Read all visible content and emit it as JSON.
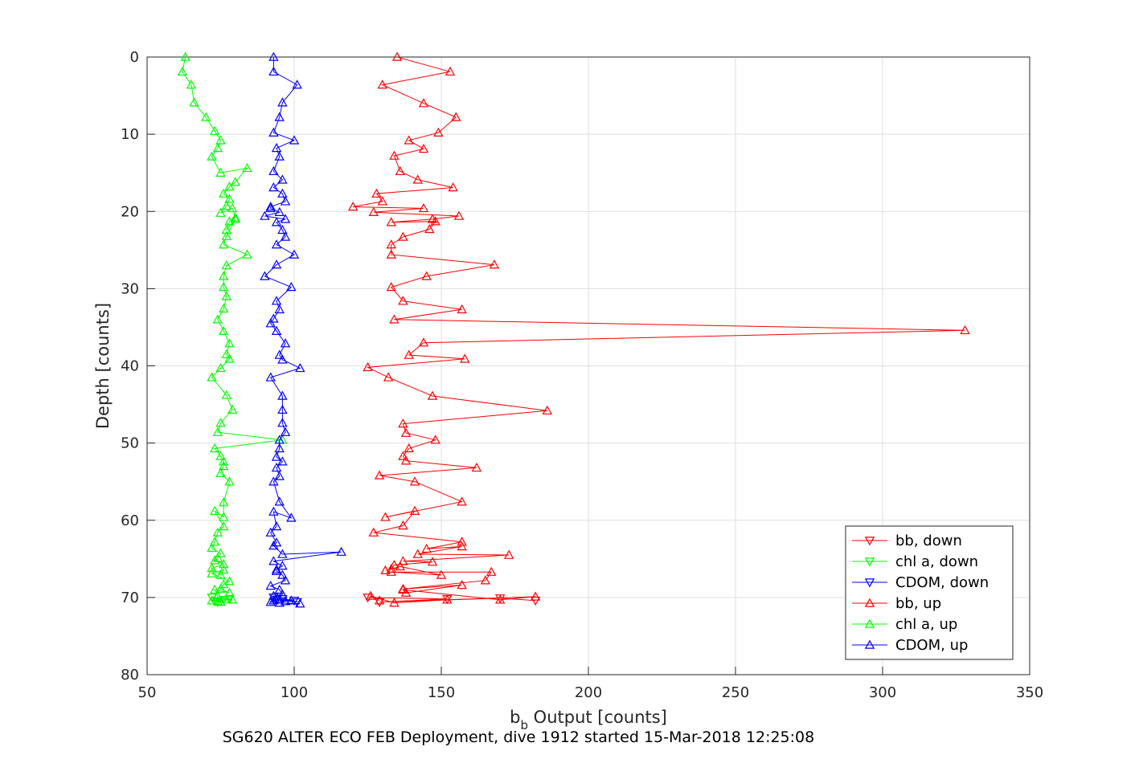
{
  "chart_data": {
    "type": "line",
    "caption": "SG620 ALTER ECO FEB Deployment, dive 1912 started 15-Mar-2018 12:25:08",
    "xlabel_main": "b",
    "xlabel_sub": "b",
    "xlabel_rest": " Output [counts]",
    "ylabel": "Depth [counts]",
    "xlim": [
      50,
      350
    ],
    "ylim": [
      0,
      80
    ],
    "y_reversed": true,
    "grid": true,
    "legend_position": "lower-right",
    "xticks": [
      50,
      100,
      150,
      200,
      250,
      300,
      350
    ],
    "yticks": [
      0,
      10,
      20,
      30,
      40,
      50,
      60,
      70,
      80
    ],
    "series": [
      {
        "name": "bb, down",
        "color": "#ff0000",
        "marker": "triangle-down",
        "x": [
          125,
          152,
          129,
          170,
          182
        ],
        "y": [
          70.0,
          70.2,
          70.6,
          70.1,
          70.4
        ]
      },
      {
        "name": "chl a, down",
        "color": "#00ff00",
        "marker": "triangle-down",
        "x": [
          72,
          78,
          73,
          76,
          74
        ],
        "y": [
          70.0,
          70.2,
          70.5,
          70.3,
          70.6
        ]
      },
      {
        "name": "CDOM, down",
        "color": "#0000ff",
        "marker": "triangle-down",
        "x": [
          93,
          100,
          96,
          101,
          94
        ],
        "y": [
          70.0,
          70.4,
          70.2,
          70.6,
          70.3
        ]
      },
      {
        "name": "bb, up",
        "color": "#ff0000",
        "marker": "triangle-up",
        "x": [
          135,
          153,
          130,
          144,
          155,
          149,
          139,
          144,
          134,
          136,
          142,
          154,
          128,
          130,
          120,
          144,
          127,
          156,
          147,
          133,
          148,
          146,
          137,
          133,
          133,
          168,
          145,
          133,
          137,
          157,
          134,
          328,
          144,
          139,
          158,
          125,
          132,
          147,
          186,
          137,
          138,
          148,
          139,
          137,
          138,
          162,
          129,
          141,
          157,
          131,
          141,
          137,
          127,
          157,
          145,
          157,
          142,
          173,
          137,
          147,
          134,
          133,
          131,
          136,
          150,
          133,
          167,
          165,
          137,
          157,
          138,
          137,
          170,
          182,
          152,
          134,
          126,
          129
        ],
        "y": [
          0,
          1.9,
          3.6,
          6.0,
          7.8,
          9.8,
          10.8,
          11.9,
          12.8,
          14.8,
          15.9,
          16.9,
          17.7,
          18.7,
          19.4,
          19.6,
          20.1,
          20.6,
          21.0,
          21.4,
          21.3,
          22.3,
          23.3,
          24.3,
          25.6,
          26.9,
          28.4,
          29.8,
          31.6,
          32.7,
          34.0,
          35.4,
          37.0,
          38.6,
          39.1,
          40.2,
          41.5,
          43.9,
          45.8,
          47.5,
          48.7,
          49.6,
          50.7,
          51.7,
          52.3,
          53.2,
          54.2,
          55.0,
          57.6,
          59.6,
          58.8,
          60.7,
          61.6,
          62.8,
          63.7,
          63.4,
          64.4,
          64.5,
          65.3,
          65.4,
          65.8,
          66.3,
          66.5,
          66.0,
          67.1,
          66.7,
          66.7,
          67.8,
          68.9,
          68.4,
          69.4,
          69.0,
          70.3,
          69.9,
          70.3,
          70.7,
          69.8,
          70.4
        ]
      },
      {
        "name": "chl a, up",
        "color": "#00ff00",
        "marker": "triangle-up",
        "x": [
          63,
          62,
          65,
          66,
          70,
          73,
          75,
          74,
          72,
          75,
          84,
          80,
          78,
          76,
          78,
          77,
          75,
          79,
          80,
          78,
          77,
          80,
          77,
          76,
          84,
          77,
          76,
          76,
          77,
          76,
          74,
          76,
          78,
          77,
          78,
          75,
          72,
          77,
          79,
          75,
          74,
          96,
          73,
          75,
          76,
          76,
          75,
          78,
          76,
          76,
          73,
          76,
          74,
          73,
          72,
          75,
          74,
          73,
          76,
          72,
          75,
          76,
          72,
          78,
          76,
          75,
          78,
          73,
          74,
          77,
          79,
          72,
          75,
          74
        ],
        "y": [
          0,
          1.9,
          3.6,
          5.9,
          7.8,
          9.6,
          10.8,
          11.8,
          12.9,
          15.0,
          14.4,
          16.2,
          16.8,
          17.7,
          18.4,
          19.3,
          20.2,
          19.6,
          20.8,
          21.3,
          22.4,
          21.0,
          23.2,
          24.3,
          25.6,
          27.0,
          28.4,
          29.8,
          31.0,
          32.6,
          34.0,
          35.5,
          37.1,
          38.5,
          39.1,
          40.3,
          41.5,
          43.8,
          45.7,
          47.4,
          48.6,
          49.6,
          50.7,
          51.7,
          52.4,
          53.0,
          53.9,
          55.0,
          57.7,
          59.6,
          58.8,
          60.8,
          61.6,
          62.8,
          63.6,
          64.3,
          64.9,
          65.2,
          65.7,
          66.2,
          67.1,
          66.4,
          66.9,
          67.9,
          68.3,
          68.9,
          69.4,
          69.0,
          69.8,
          70.2,
          70.3,
          70.4,
          70.6,
          70.5
        ]
      },
      {
        "name": "CDOM, up",
        "color": "#0000ff",
        "marker": "triangle-up",
        "x": [
          93,
          93,
          101,
          96,
          95,
          93,
          100,
          94,
          95,
          93,
          96,
          93,
          96,
          97,
          92,
          92,
          95,
          90,
          97,
          94,
          96,
          97,
          94,
          100,
          94,
          90,
          99,
          94,
          95,
          93,
          92,
          94,
          97,
          95,
          96,
          102,
          92,
          96,
          96,
          96,
          97,
          95,
          95,
          94,
          96,
          94,
          95,
          93,
          95,
          99,
          93,
          94,
          92,
          94,
          93,
          96,
          116,
          93,
          96,
          94,
          94,
          96,
          97,
          92,
          95,
          96,
          93,
          93,
          95,
          99,
          97,
          92,
          95,
          102
        ],
        "y": [
          0,
          1.9,
          3.6,
          5.9,
          7.8,
          9.8,
          10.8,
          11.8,
          12.9,
          14.8,
          15.9,
          16.9,
          17.7,
          18.7,
          19.4,
          19.6,
          20.1,
          20.6,
          21.0,
          21.4,
          22.4,
          23.3,
          24.3,
          25.6,
          26.9,
          28.4,
          29.8,
          31.6,
          32.7,
          33.9,
          34.5,
          35.5,
          37.1,
          38.6,
          39.2,
          40.3,
          41.5,
          43.9,
          45.7,
          47.4,
          48.6,
          49.6,
          50.7,
          51.8,
          52.4,
          53.2,
          54.3,
          55.0,
          57.6,
          59.7,
          58.9,
          60.8,
          61.6,
          62.9,
          63.3,
          64.4,
          64.1,
          65.3,
          65.9,
          66.4,
          66.6,
          67.1,
          67.8,
          68.5,
          69.0,
          69.6,
          69.8,
          70.4,
          70.3,
          70.4,
          70.5,
          70.6,
          70.7,
          70.8
        ]
      }
    ]
  }
}
